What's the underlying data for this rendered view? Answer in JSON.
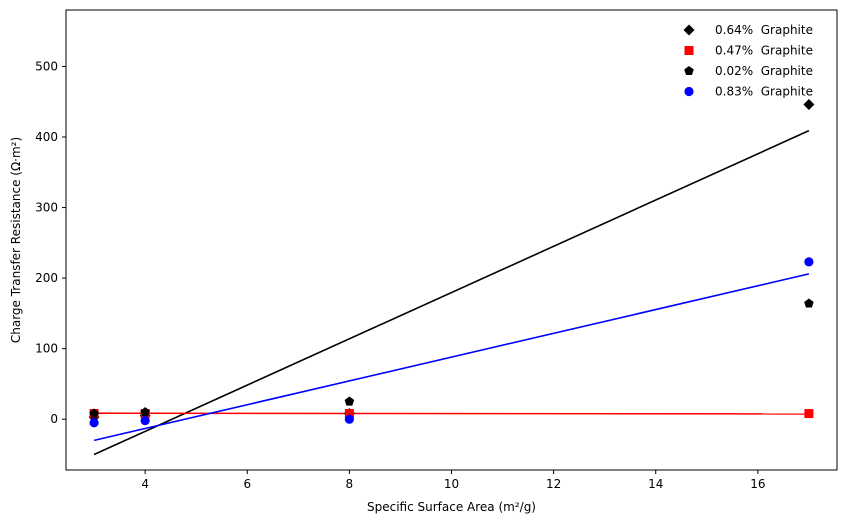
{
  "chart_data": {
    "type": "scatter",
    "xlabel": "Specific Surface Area (m²/g)",
    "ylabel": "Charge Transfer Resistance (Ω·m²)",
    "xlim": [
      2.45,
      17.55
    ],
    "ylim": [
      -72,
      580
    ],
    "xticks": [
      4,
      6,
      8,
      10,
      12,
      14,
      16
    ],
    "yticks": [
      0,
      100,
      200,
      300,
      400,
      500
    ],
    "grid": false,
    "legend_position": "top-right",
    "series": [
      {
        "name": "0.64%  Graphite",
        "marker": "diamond",
        "color": "#000000",
        "x": [
          3,
          4,
          8,
          17
        ],
        "y": [
          3,
          5,
          8,
          446
        ],
        "fit": [
          [
            3,
            -50
          ],
          [
            17,
            409
          ]
        ]
      },
      {
        "name": "0.47%  Graphite",
        "marker": "square",
        "color": "#ff0000",
        "x": [
          3,
          4,
          8,
          17
        ],
        "y": [
          8,
          8,
          8,
          8
        ],
        "fit": [
          [
            3,
            8.5
          ],
          [
            17,
            7.5
          ]
        ]
      },
      {
        "name": "0.02%  Graphite",
        "marker": "pentagon",
        "color": "#000000",
        "x": [
          3,
          4,
          8,
          17
        ],
        "y": [
          8,
          10,
          25,
          164
        ],
        "fit": null
      },
      {
        "name": "0.83%  Graphite",
        "marker": "circle",
        "color": "#0000ff",
        "x": [
          3,
          4,
          8,
          17
        ],
        "y": [
          -5,
          -2,
          0,
          223
        ],
        "fit": [
          [
            3,
            -30
          ],
          [
            17,
            206
          ]
        ]
      }
    ]
  }
}
